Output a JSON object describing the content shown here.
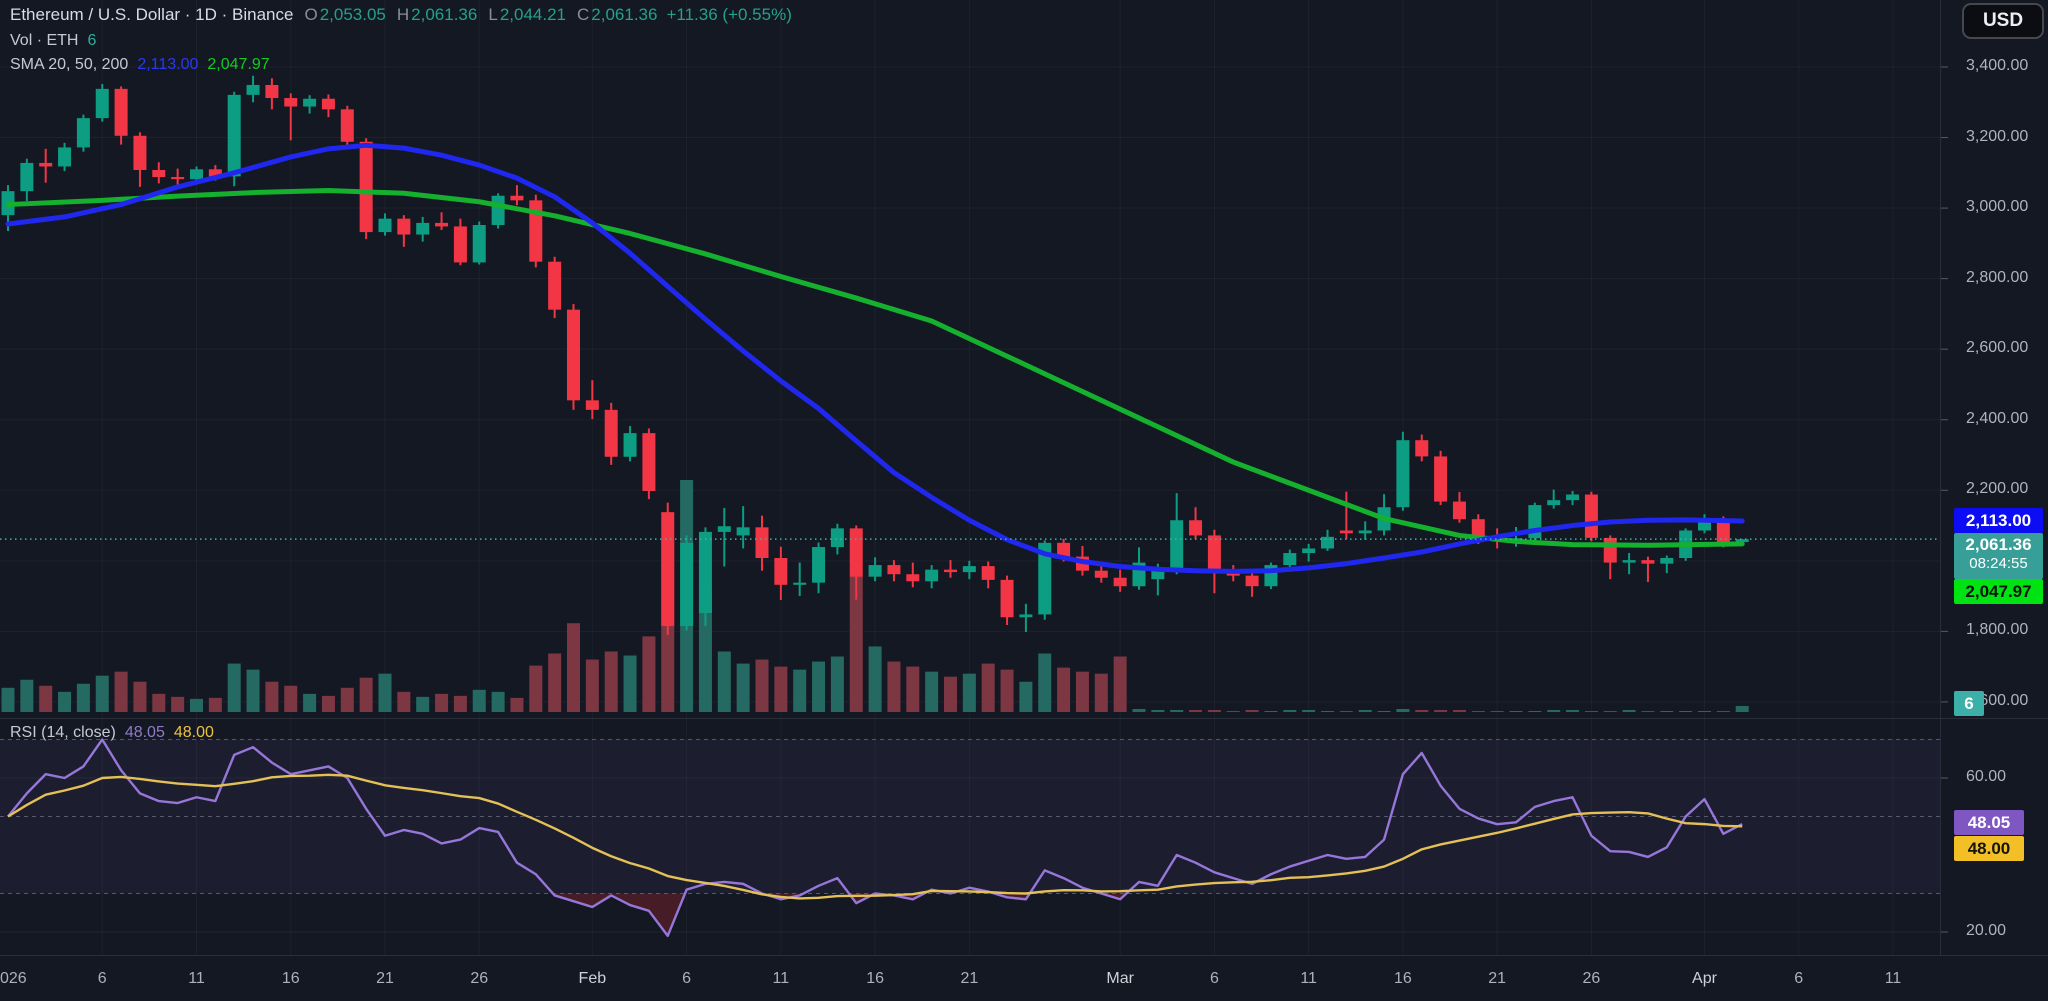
{
  "header": {
    "title": "Ethereum / U.S. Dollar · 1D · Binance",
    "ohlc": {
      "o_label": "O",
      "o_value": "2,053.05",
      "h_label": "H",
      "h_value": "2,061.36",
      "l_label": "L",
      "l_value": "2,044.21",
      "c_label": "C",
      "c_value": "2,061.36",
      "change": "+11.36 (+0.55%)"
    },
    "vol_label": "Vol · ETH",
    "vol_value": "6",
    "sma_label": "SMA 20, 50, 200",
    "sma_fast_value": "2,113.00",
    "sma_slow_value": "2,047.97"
  },
  "rsi": {
    "label": "RSI (14, close)",
    "value": "48.05",
    "ma_value": "48.00"
  },
  "toolbar": {
    "currency": "USD"
  },
  "axis": {
    "price_labels": [
      {
        "text": "3,400.00",
        "price": 3400
      },
      {
        "text": "3,200.00",
        "price": 3200
      },
      {
        "text": "3,000.00",
        "price": 3000
      },
      {
        "text": "2,800.00",
        "price": 2800
      },
      {
        "text": "2,600.00",
        "price": 2600
      },
      {
        "text": "2,400.00",
        "price": 2400
      },
      {
        "text": "2,200.00",
        "price": 2200
      },
      {
        "text": "1,800.00",
        "price": 1800
      },
      {
        "text": "1,600.00",
        "price": 1600
      }
    ],
    "rsi_labels": [
      {
        "text": "60.00",
        "value": 60
      },
      {
        "text": "20.00",
        "value": 20
      }
    ],
    "time_labels": [
      {
        "text": "026",
        "day": 1
      },
      {
        "text": "6",
        "day": 6
      },
      {
        "text": "11",
        "day": 11
      },
      {
        "text": "16",
        "day": 16
      },
      {
        "text": "21",
        "day": 21
      },
      {
        "text": "26",
        "day": 26
      },
      {
        "text": "Feb",
        "day": 32
      },
      {
        "text": "6",
        "day": 37
      },
      {
        "text": "11",
        "day": 42
      },
      {
        "text": "16",
        "day": 47
      },
      {
        "text": "21",
        "day": 52
      },
      {
        "text": "Mar",
        "day": 60
      },
      {
        "text": "6",
        "day": 65
      },
      {
        "text": "11",
        "day": 70
      },
      {
        "text": "16",
        "day": 75
      },
      {
        "text": "21",
        "day": 80
      },
      {
        "text": "26",
        "day": 85
      },
      {
        "text": "Apr",
        "day": 91
      },
      {
        "text": "6",
        "day": 96
      },
      {
        "text": "11",
        "day": 101
      }
    ]
  },
  "badges": {
    "sma_fast": "2,113.00",
    "close_price": "2,061.36",
    "countdown": "08:24:55",
    "sma_slow": "2,047.97",
    "volume": "6",
    "rsi": "48.05",
    "rsi_ma": "48.00"
  },
  "chart_data": {
    "type": "candlestick",
    "title": "Ethereum / U.S. Dollar",
    "interval": "1D",
    "exchange": "Binance",
    "last_close": 2061.36,
    "price_gridlines": [
      3400,
      3200,
      3000,
      2800,
      2600,
      2400,
      2200,
      2000,
      1800,
      1600
    ],
    "rsi_dashed_levels": [
      70,
      50,
      30
    ],
    "rsi_gridlines": [
      60,
      20
    ],
    "volume_max": 230,
    "candles": [
      [
        2980,
        3065,
        2935,
        3048,
        24
      ],
      [
        3048,
        3140,
        3020,
        3128,
        32
      ],
      [
        3128,
        3168,
        3072,
        3118,
        26
      ],
      [
        3118,
        3185,
        3105,
        3172,
        20
      ],
      [
        3172,
        3265,
        3160,
        3255,
        28
      ],
      [
        3255,
        3352,
        3245,
        3338,
        36
      ],
      [
        3338,
        3345,
        3180,
        3205,
        40
      ],
      [
        3205,
        3215,
        3060,
        3108,
        30
      ],
      [
        3108,
        3130,
        3070,
        3088,
        18
      ],
      [
        3088,
        3112,
        3062,
        3082,
        15
      ],
      [
        3082,
        3118,
        3068,
        3110,
        13
      ],
      [
        3110,
        3122,
        3078,
        3090,
        14
      ],
      [
        3090,
        3330,
        3062,
        3321,
        48
      ],
      [
        3321,
        3375,
        3300,
        3349,
        42
      ],
      [
        3349,
        3368,
        3280,
        3312,
        30
      ],
      [
        3312,
        3325,
        3192,
        3288,
        26
      ],
      [
        3288,
        3320,
        3268,
        3310,
        18
      ],
      [
        3310,
        3322,
        3258,
        3280,
        16
      ],
      [
        3280,
        3290,
        3178,
        3188,
        24
      ],
      [
        3188,
        3198,
        2912,
        2932,
        34
      ],
      [
        2932,
        2985,
        2922,
        2970,
        38
      ],
      [
        2970,
        2980,
        2890,
        2925,
        20
      ],
      [
        2925,
        2975,
        2905,
        2958,
        15
      ],
      [
        2958,
        2988,
        2938,
        2948,
        18
      ],
      [
        2948,
        2970,
        2838,
        2846,
        16
      ],
      [
        2846,
        2962,
        2840,
        2952,
        22
      ],
      [
        2952,
        3042,
        2942,
        3035,
        20
      ],
      [
        3035,
        3065,
        3008,
        3022,
        14
      ],
      [
        3022,
        3038,
        2832,
        2848,
        46
      ],
      [
        2848,
        2862,
        2688,
        2712,
        58
      ],
      [
        2712,
        2728,
        2428,
        2455,
        88
      ],
      [
        2455,
        2512,
        2402,
        2428,
        52
      ],
      [
        2428,
        2448,
        2272,
        2295,
        60
      ],
      [
        2295,
        2382,
        2282,
        2362,
        56
      ],
      [
        2362,
        2375,
        2175,
        2198,
        75
      ],
      [
        2138,
        2165,
        1790,
        1815,
        170
      ],
      [
        1815,
        2072,
        1802,
        2051,
        230
      ],
      [
        1852,
        2095,
        1815,
        2082,
        120
      ],
      [
        2082,
        2150,
        1984,
        2098,
        60
      ],
      [
        2072,
        2155,
        2035,
        2095,
        48
      ],
      [
        2095,
        2128,
        1972,
        2008,
        52
      ],
      [
        2008,
        2040,
        1889,
        1932,
        45
      ],
      [
        1932,
        1995,
        1900,
        1938,
        42
      ],
      [
        1938,
        2052,
        1908,
        2039,
        50
      ],
      [
        2039,
        2105,
        2018,
        2092,
        55
      ],
      [
        2092,
        2100,
        1890,
        1955,
        135
      ],
      [
        1955,
        2010,
        1942,
        1988,
        65
      ],
      [
        1988,
        2002,
        1942,
        1962,
        50
      ],
      [
        1962,
        1995,
        1925,
        1942,
        45
      ],
      [
        1942,
        1988,
        1922,
        1975,
        40
      ],
      [
        1975,
        2002,
        1952,
        1968,
        35
      ],
      [
        1968,
        2000,
        1948,
        1985,
        38
      ],
      [
        1985,
        1998,
        1922,
        1946,
        48
      ],
      [
        1946,
        1958,
        1818,
        1840,
        42
      ],
      [
        1840,
        1878,
        1798,
        1848,
        30
      ],
      [
        1848,
        2058,
        1833,
        2051,
        58
      ],
      [
        2051,
        2062,
        1998,
        2012,
        44
      ],
      [
        2012,
        2042,
        1958,
        1972,
        40
      ],
      [
        1972,
        1998,
        1938,
        1952,
        38
      ],
      [
        1952,
        1975,
        1912,
        1928,
        55
      ],
      [
        1928,
        2038,
        1918,
        1995,
        3
      ],
      [
        1948,
        1992,
        1902,
        1972,
        2
      ],
      [
        1972,
        2192,
        1962,
        2115,
        2
      ],
      [
        2115,
        2152,
        2062,
        2072,
        2
      ],
      [
        2072,
        2088,
        1908,
        1968,
        2
      ],
      [
        1968,
        1988,
        1942,
        1958,
        1
      ],
      [
        1958,
        1972,
        1898,
        1928,
        2
      ],
      [
        1928,
        1995,
        1920,
        1988,
        1
      ],
      [
        1988,
        2032,
        1975,
        2022,
        2
      ],
      [
        2022,
        2048,
        1998,
        2035,
        2
      ],
      [
        2035,
        2088,
        2028,
        2068,
        1
      ],
      [
        2086,
        2196,
        2062,
        2078,
        1
      ],
      [
        2078,
        2112,
        2060,
        2086,
        2
      ],
      [
        2086,
        2189,
        2072,
        2152,
        1
      ],
      [
        2152,
        2366,
        2142,
        2342,
        3
      ],
      [
        2342,
        2358,
        2282,
        2296,
        2
      ],
      [
        2296,
        2312,
        2158,
        2168,
        2
      ],
      [
        2168,
        2195,
        2108,
        2118,
        2
      ],
      [
        2118,
        2132,
        2048,
        2068,
        1
      ],
      [
        2068,
        2092,
        2035,
        2058,
        1
      ],
      [
        2058,
        2096,
        2040,
        2064,
        1
      ],
      [
        2064,
        2165,
        2052,
        2158,
        1
      ],
      [
        2158,
        2202,
        2148,
        2172,
        2
      ],
      [
        2172,
        2198,
        2158,
        2188,
        2
      ],
      [
        2188,
        2196,
        2055,
        2065,
        1
      ],
      [
        2065,
        2072,
        1948,
        1995,
        1
      ],
      [
        1995,
        2022,
        1962,
        2002,
        2
      ],
      [
        2002,
        2012,
        1940,
        1992,
        1
      ],
      [
        1992,
        2015,
        1965,
        2008,
        1
      ],
      [
        2008,
        2092,
        2000,
        2086,
        1
      ],
      [
        2086,
        2132,
        2078,
        2116,
        1
      ],
      [
        2116,
        2126,
        2038,
        2050,
        1
      ],
      [
        2053.05,
        2061.36,
        2044.21,
        2061.36,
        6
      ]
    ],
    "sma_fast": [
      [
        1,
        2955
      ],
      [
        4,
        2975
      ],
      [
        7,
        3010
      ],
      [
        10,
        3060
      ],
      [
        13,
        3100
      ],
      [
        16,
        3145
      ],
      [
        18,
        3168
      ],
      [
        20,
        3178
      ],
      [
        22,
        3170
      ],
      [
        24,
        3150
      ],
      [
        26,
        3122
      ],
      [
        28,
        3085
      ],
      [
        30,
        3032
      ],
      [
        32,
        2958
      ],
      [
        34,
        2872
      ],
      [
        36,
        2778
      ],
      [
        38,
        2685
      ],
      [
        40,
        2595
      ],
      [
        42,
        2510
      ],
      [
        44,
        2432
      ],
      [
        46,
        2340
      ],
      [
        48,
        2250
      ],
      [
        50,
        2180
      ],
      [
        52,
        2115
      ],
      [
        54,
        2060
      ],
      [
        56,
        2020
      ],
      [
        58,
        1998
      ],
      [
        60,
        1984
      ],
      [
        62,
        1976
      ],
      [
        64,
        1972
      ],
      [
        66,
        1970
      ],
      [
        68,
        1972
      ],
      [
        70,
        1980
      ],
      [
        72,
        1992
      ],
      [
        74,
        2008
      ],
      [
        76,
        2025
      ],
      [
        78,
        2048
      ],
      [
        80,
        2068
      ],
      [
        82,
        2086
      ],
      [
        84,
        2100
      ],
      [
        86,
        2110
      ],
      [
        88,
        2115
      ],
      [
        90,
        2116
      ],
      [
        93,
        2113
      ]
    ],
    "sma_slow": [
      [
        1,
        3010
      ],
      [
        6,
        3022
      ],
      [
        10,
        3034
      ],
      [
        14,
        3044
      ],
      [
        18,
        3050
      ],
      [
        22,
        3042
      ],
      [
        26,
        3018
      ],
      [
        30,
        2978
      ],
      [
        34,
        2928
      ],
      [
        38,
        2870
      ],
      [
        42,
        2806
      ],
      [
        46,
        2745
      ],
      [
        50,
        2680
      ],
      [
        54,
        2580
      ],
      [
        58,
        2480
      ],
      [
        62,
        2380
      ],
      [
        66,
        2280
      ],
      [
        70,
        2200
      ],
      [
        74,
        2120
      ],
      [
        78,
        2072
      ],
      [
        81,
        2055
      ],
      [
        84,
        2046
      ],
      [
        88,
        2044
      ],
      [
        93,
        2048
      ]
    ],
    "rsi_values": [
      50,
      56,
      61,
      60,
      63,
      70,
      62,
      56,
      54,
      53.5,
      55,
      54,
      66,
      68,
      64,
      61,
      62,
      63,
      60,
      52,
      45,
      46.5,
      45.5,
      43,
      44,
      47,
      46,
      38,
      35,
      29.5,
      28,
      26.5,
      29.5,
      27,
      25.5,
      19,
      31,
      32.5,
      33,
      32.5,
      30,
      28.5,
      29.5,
      32,
      34,
      27.5,
      30,
      29.5,
      28.5,
      31,
      30,
      31.5,
      30.5,
      29,
      28.5,
      36,
      34,
      31.5,
      30,
      28.5,
      33,
      32,
      40,
      38,
      35.5,
      34,
      32.5,
      35,
      37,
      38.5,
      40,
      39,
      39.5,
      44,
      61,
      66.5,
      58,
      52,
      49.5,
      48,
      48.5,
      52.5,
      54,
      55,
      45,
      41,
      40.8,
      39.5,
      42,
      50,
      54.5,
      45.5,
      48.05
    ],
    "colors": {
      "background": "#141823",
      "up": "#0d9d82",
      "down": "#f23645",
      "vol_up": "#256a62",
      "vol_down": "#7d3742",
      "sma_fast": "#2028f0",
      "sma_slow": "#14b02e",
      "rsi_line": "#9677d9",
      "rsi_ma": "#e3c156",
      "rsi_band": "#7e57c2",
      "oversold_fill": "#b22833",
      "price_line": "#3fb3a9",
      "badge_blue": "#0d0df5",
      "badge_close": "#379e98",
      "badge_green": "#00e312",
      "badge_purple": "#7e57c2",
      "badge_yellow": "#f2c026"
    }
  }
}
